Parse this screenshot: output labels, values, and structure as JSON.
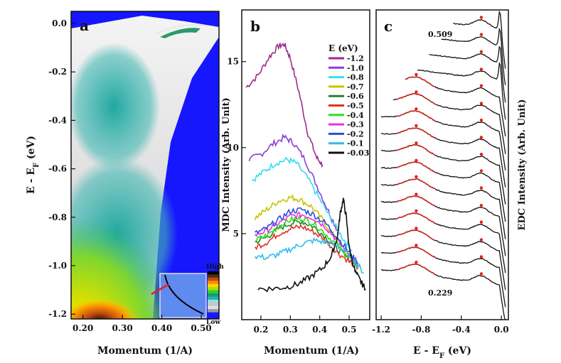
{
  "figure": "ARPES spectra: intensity map, momentum distribution curves and energy distribution curves",
  "chart_data": [
    {
      "panel": "a",
      "type": "heatmap",
      "label": "a",
      "xlabel": "Momentum (1/A)",
      "ylabel_main": "E - E",
      "ylabel_sub": "F",
      "ylabel_unit": " (eV)",
      "xticks": [
        "0.20",
        "0.30",
        "0.40",
        "0.50"
      ],
      "xtick_values": [
        0.2,
        0.3,
        0.4,
        0.5
      ],
      "yticks": [
        "0.0",
        "-0.2",
        "-0.4",
        "-0.6",
        "-0.8",
        "-1.0",
        "-1.2"
      ],
      "ytick_values": [
        0.0,
        -0.2,
        -0.4,
        -0.6,
        -0.8,
        -1.0,
        -1.2
      ],
      "xlim": [
        0.17,
        0.545
      ],
      "ylim": [
        -1.22,
        0.05
      ],
      "colorbar": {
        "high_label": "High",
        "low_label": "Low",
        "colors": [
          "#000000",
          "#5a2a10",
          "#b8501c",
          "#ff8c00",
          "#ffd400",
          "#a8e000",
          "#2ecc40",
          "#1a9a6a",
          "#1fb0b0",
          "#9adada",
          "#c8c8c8",
          "#e0e0e0",
          "#9a9a9a",
          "#1a1aff"
        ]
      }
    },
    {
      "panel": "b",
      "type": "line",
      "label": "b",
      "xlabel": "Momentum (1/A)",
      "ylabel": "MDC Intensity (Arb. Unit)",
      "xticks": [
        "0.2",
        "0.3",
        "0.4",
        "0.5"
      ],
      "xtick_values": [
        0.2,
        0.3,
        0.4,
        0.5
      ],
      "yticks": [
        "5",
        "10",
        "15"
      ],
      "ytick_values": [
        5,
        10,
        15
      ],
      "xlim": [
        0.135,
        0.57
      ],
      "ylim": [
        0,
        18
      ],
      "legend_title": "E (eV)",
      "series": [
        {
          "name": "-1.2",
          "color": "#9b2d8c",
          "x": [
            0.15,
            0.19,
            0.23,
            0.26,
            0.28,
            0.3,
            0.33,
            0.36,
            0.39,
            0.41
          ],
          "y": [
            13.5,
            14.2,
            15.3,
            15.9,
            16.0,
            15.2,
            13.2,
            10.8,
            9.4,
            9.0
          ]
        },
        {
          "name": "-1.0",
          "color": "#8a3fd6",
          "x": [
            0.16,
            0.2,
            0.24,
            0.28,
            0.31,
            0.35,
            0.39,
            0.43,
            0.46
          ],
          "y": [
            9.3,
            9.6,
            10.2,
            10.6,
            10.3,
            9.3,
            7.8,
            6.3,
            5.2
          ]
        },
        {
          "name": "-0.8",
          "color": "#33ddf0",
          "x": [
            0.17,
            0.21,
            0.25,
            0.29,
            0.32,
            0.36,
            0.4,
            0.44,
            0.48,
            0.51
          ],
          "y": [
            8.1,
            8.6,
            9.1,
            9.3,
            9.1,
            8.2,
            7.0,
            5.8,
            4.7,
            4.0
          ]
        },
        {
          "name": "-0.7",
          "color": "#c8c400",
          "x": [
            0.18,
            0.22,
            0.26,
            0.3,
            0.33,
            0.37,
            0.41,
            0.45,
            0.49,
            0.52
          ],
          "y": [
            5.9,
            6.4,
            6.9,
            7.1,
            7.0,
            6.6,
            5.8,
            4.8,
            3.9,
            3.4
          ]
        },
        {
          "name": "-0.6",
          "color": "#1a8a2a",
          "x": [
            0.18,
            0.22,
            0.26,
            0.3,
            0.34,
            0.38,
            0.42,
            0.46,
            0.5,
            0.53
          ],
          "y": [
            4.5,
            4.8,
            5.3,
            5.6,
            5.7,
            5.4,
            4.8,
            4.1,
            3.5,
            3.1
          ]
        },
        {
          "name": "-0.5",
          "color": "#e53020",
          "x": [
            0.18,
            0.22,
            0.26,
            0.3,
            0.34,
            0.38,
            0.42,
            0.46,
            0.5,
            0.53
          ],
          "y": [
            4.2,
            4.5,
            5.0,
            5.3,
            5.4,
            5.1,
            4.6,
            3.9,
            3.4,
            3.0
          ]
        },
        {
          "name": "-0.4",
          "color": "#2ee01a",
          "x": [
            0.18,
            0.22,
            0.26,
            0.3,
            0.34,
            0.38,
            0.42,
            0.46,
            0.5,
            0.53
          ],
          "y": [
            4.6,
            4.9,
            5.4,
            5.8,
            5.9,
            5.6,
            5.0,
            4.3,
            3.6,
            3.1
          ]
        },
        {
          "name": "-0.3",
          "color": "#ee2ee0",
          "x": [
            0.18,
            0.22,
            0.26,
            0.3,
            0.34,
            0.38,
            0.42,
            0.46,
            0.5,
            0.53
          ],
          "y": [
            4.9,
            5.2,
            5.6,
            6.0,
            6.1,
            5.9,
            5.4,
            4.6,
            3.8,
            3.2
          ]
        },
        {
          "name": "-0.2",
          "color": "#2a4ee0",
          "x": [
            0.18,
            0.22,
            0.26,
            0.3,
            0.34,
            0.38,
            0.42,
            0.46,
            0.5,
            0.53
          ],
          "y": [
            5.0,
            5.3,
            5.8,
            6.3,
            6.4,
            6.1,
            5.6,
            4.8,
            3.9,
            3.3
          ]
        },
        {
          "name": "-0.1",
          "color": "#33bbee",
          "x": [
            0.18,
            0.22,
            0.26,
            0.3,
            0.34,
            0.38,
            0.42,
            0.46,
            0.49,
            0.52,
            0.55
          ],
          "y": [
            3.7,
            3.6,
            3.8,
            4.1,
            4.4,
            4.6,
            4.5,
            4.3,
            3.9,
            3.4,
            2.7
          ]
        },
        {
          "name": "-0.03",
          "color": "#111111",
          "x": [
            0.19,
            0.24,
            0.29,
            0.33,
            0.37,
            0.41,
            0.44,
            0.46,
            0.47,
            0.48,
            0.49,
            0.5,
            0.52,
            0.54,
            0.555
          ],
          "y": [
            1.8,
            1.8,
            1.9,
            2.1,
            2.5,
            3.0,
            3.7,
            4.8,
            6.2,
            7.0,
            6.0,
            4.2,
            2.8,
            2.2,
            1.8
          ]
        }
      ]
    },
    {
      "panel": "c",
      "type": "line",
      "label": "c",
      "xlabel_main": "E - E",
      "xlabel_sub": "F",
      "xlabel_unit": " (eV)",
      "ylabel": "EDC Intensity (Arb. Unit)",
      "xticks": [
        "-1.2",
        "-0.8",
        "-0.4",
        "0.0"
      ],
      "xtick_values": [
        -1.2,
        -0.8,
        -0.4,
        0.0
      ],
      "xlim": [
        -1.25,
        0.07
      ],
      "curve_count": 16,
      "top_annotation": "0.509",
      "bottom_annotation": "0.229",
      "curve_color": "#111111",
      "fit_color": "#c0281c",
      "marker_color": "#e8201a"
    }
  ]
}
